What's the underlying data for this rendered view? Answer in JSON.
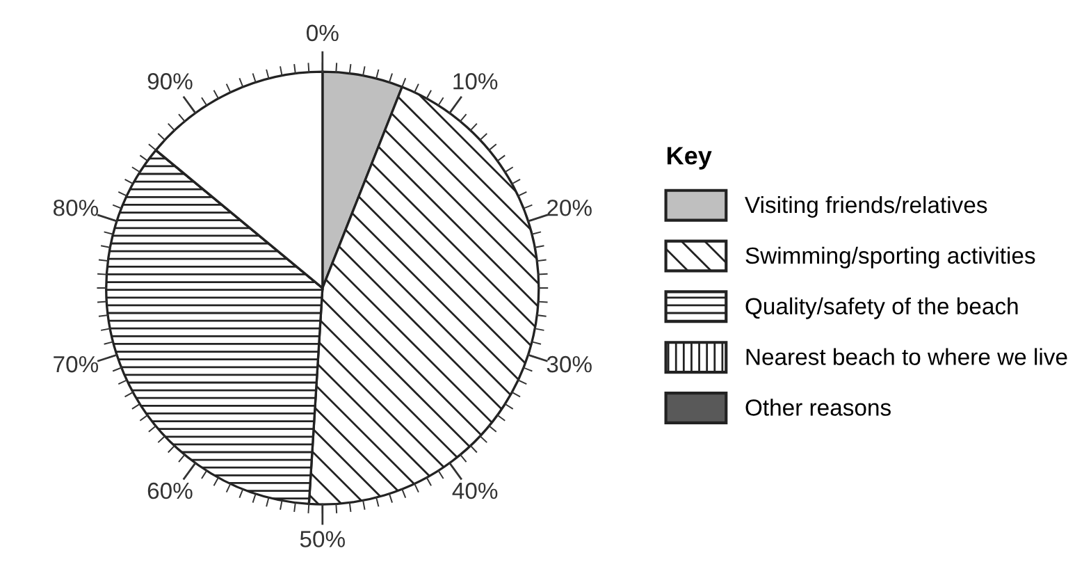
{
  "chart_data": {
    "type": "pie",
    "categories": [
      "Visiting friends/relatives",
      "Swimming/sporting activities",
      "Quality/safety of the beach",
      "Nearest beach to where we live",
      "Other reasons",
      null
    ],
    "values": [
      6,
      45,
      35,
      0,
      0,
      14
    ],
    "colors": [
      "#bfbfbf",
      "#222222",
      "#222222",
      "#222222",
      "#595959",
      "#ffffff"
    ],
    "legend": "right",
    "legend_title": "Key",
    "annotations": [
      "0%",
      "10%",
      "20%",
      "30%",
      "40%",
      "50%",
      "60%",
      "70%",
      "80%",
      "90%"
    ]
  }
}
